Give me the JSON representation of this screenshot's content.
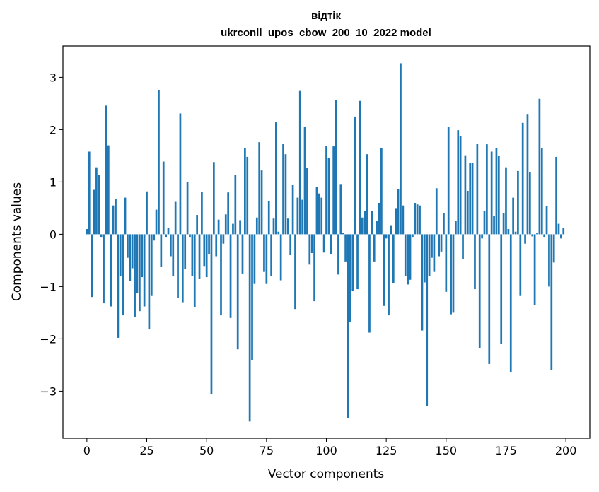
{
  "chart_data": {
    "type": "bar",
    "title": "відтік",
    "subtitle": "ukrconll_upos_cbow_200_10_2022 model",
    "xlabel": "Vector components",
    "ylabel": "Components values",
    "xlim": [
      -10,
      210
    ],
    "ylim": [
      -3.9,
      3.6
    ],
    "xticks": [
      0,
      25,
      50,
      75,
      100,
      125,
      150,
      175,
      200
    ],
    "xtick_labels": [
      "0",
      "25",
      "50",
      "75",
      "100",
      "125",
      "150",
      "175",
      "200"
    ],
    "yticks": [
      -3,
      -2,
      -1,
      0,
      1,
      2,
      3
    ],
    "ytick_labels": [
      "−3",
      "−2",
      "−1",
      "0",
      "1",
      "2",
      "3"
    ],
    "color": "#1f77b4",
    "bar_width": 0.8,
    "values": [
      0.1,
      1.58,
      -1.2,
      0.85,
      1.28,
      1.13,
      -0.05,
      -1.32,
      2.46,
      1.7,
      -1.38,
      0.55,
      0.67,
      -1.98,
      -0.8,
      -1.55,
      0.7,
      -0.45,
      -0.9,
      -0.65,
      -1.58,
      -1.12,
      -1.47,
      -0.82,
      -1.38,
      0.82,
      -1.82,
      -1.18,
      -0.12,
      0.47,
      2.75,
      -0.63,
      1.39,
      -0.05,
      0.12,
      -0.42,
      -0.8,
      0.62,
      -1.22,
      2.31,
      -1.3,
      -0.66,
      1.0,
      -0.05,
      -0.8,
      -1.4,
      0.37,
      -0.85,
      0.81,
      -0.62,
      -0.82,
      -0.38,
      -3.05,
      1.38,
      -0.42,
      0.28,
      -1.55,
      -0.18,
      0.38,
      0.8,
      -1.6,
      0.2,
      1.13,
      -2.2,
      0.27,
      -0.75,
      1.65,
      1.48,
      -3.58,
      -2.4,
      -0.95,
      0.32,
      1.76,
      1.22,
      -0.72,
      -0.95,
      0.64,
      -0.8,
      0.3,
      2.14,
      0.05,
      -0.88,
      1.73,
      1.53,
      0.3,
      -0.4,
      0.94,
      -1.43,
      0.7,
      2.74,
      0.66,
      2.06,
      1.27,
      -0.58,
      -0.36,
      -1.28,
      0.9,
      0.78,
      0.7,
      -0.35,
      1.69,
      1.46,
      -0.38,
      1.68,
      2.57,
      -0.77,
      0.96,
      0.03,
      -0.52,
      -3.51,
      -1.67,
      -1.08,
      2.25,
      -1.05,
      2.55,
      0.32,
      0.45,
      1.53,
      -1.88,
      0.45,
      -0.52,
      0.25,
      0.6,
      1.65,
      -1.37,
      -0.08,
      -1.55,
      0.16,
      -0.93,
      0.5,
      0.86,
      3.27,
      0.55,
      -0.8,
      -0.96,
      -0.87,
      -0.05,
      0.6,
      0.57,
      0.55,
      -1.84,
      -0.92,
      -3.28,
      -0.8,
      -0.45,
      -0.72,
      0.88,
      -0.42,
      -0.33,
      0.4,
      -1.1,
      2.05,
      -1.53,
      -1.5,
      0.25,
      1.99,
      1.87,
      -0.48,
      1.51,
      0.83,
      1.36,
      1.36,
      -1.05,
      1.73,
      -2.17,
      -0.08,
      0.45,
      1.72,
      -2.48,
      1.58,
      0.35,
      1.65,
      1.5,
      -2.1,
      0.4,
      1.28,
      0.1,
      -2.63,
      0.7,
      0.05,
      1.21,
      -1.18,
      2.13,
      -0.18,
      2.3,
      1.18,
      -0.04,
      -1.35,
      0.03,
      2.59,
      1.64,
      -0.05,
      0.54,
      -1.0,
      -2.59,
      -0.54,
      1.48,
      0.2,
      -0.08,
      0.12
    ]
  }
}
